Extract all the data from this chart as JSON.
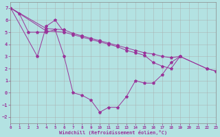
{
  "xlabel": "Windchill (Refroidissement éolien,°C)",
  "xlim": [
    0,
    23
  ],
  "ylim": [
    -2.5,
    7.5
  ],
  "xticks": [
    0,
    1,
    2,
    3,
    4,
    5,
    6,
    7,
    8,
    9,
    10,
    11,
    12,
    13,
    14,
    15,
    16,
    17,
    18,
    19,
    20,
    21,
    22,
    23
  ],
  "yticks": [
    -2,
    -1,
    0,
    1,
    2,
    3,
    4,
    5,
    6,
    7
  ],
  "bg_color": "#b3e2e2",
  "line_color": "#993399",
  "grid_color": "#aaaaaa",
  "curve1_x": [
    0,
    1,
    2,
    3,
    4,
    5,
    6,
    7,
    8,
    9,
    10,
    11,
    12,
    13,
    14,
    15,
    16,
    17,
    18,
    19,
    22,
    23
  ],
  "curve1_y": [
    7.0,
    6.5,
    5.0,
    5.0,
    5.0,
    5.2,
    3.0,
    0.0,
    -0.2,
    -0.6,
    -1.6,
    -1.2,
    -1.2,
    -0.3,
    1.0,
    0.8,
    0.8,
    1.5,
    2.5,
    3.0,
    2.0,
    1.8
  ],
  "curve2_x": [
    0,
    3,
    4,
    5,
    6
  ],
  "curve2_y": [
    7.0,
    3.0,
    5.5,
    6.0,
    5.0
  ],
  "curve3_x": [
    0,
    4,
    6,
    7,
    8,
    9,
    10,
    11,
    12,
    13,
    14,
    15,
    16,
    17,
    18,
    19
  ],
  "curve3_y": [
    7.0,
    5.3,
    5.2,
    4.9,
    4.7,
    4.5,
    4.3,
    4.1,
    3.9,
    3.7,
    3.5,
    3.3,
    3.2,
    3.0,
    2.9,
    3.0
  ],
  "curve4_x": [
    0,
    4,
    6,
    7,
    8,
    9,
    10,
    11,
    12,
    13,
    14,
    15,
    16,
    17,
    18,
    19,
    22,
    23
  ],
  "curve4_y": [
    7.0,
    5.1,
    5.0,
    4.8,
    4.6,
    4.4,
    4.2,
    4.0,
    3.8,
    3.5,
    3.3,
    3.1,
    2.5,
    2.2,
    2.0,
    3.0,
    2.0,
    1.8
  ]
}
